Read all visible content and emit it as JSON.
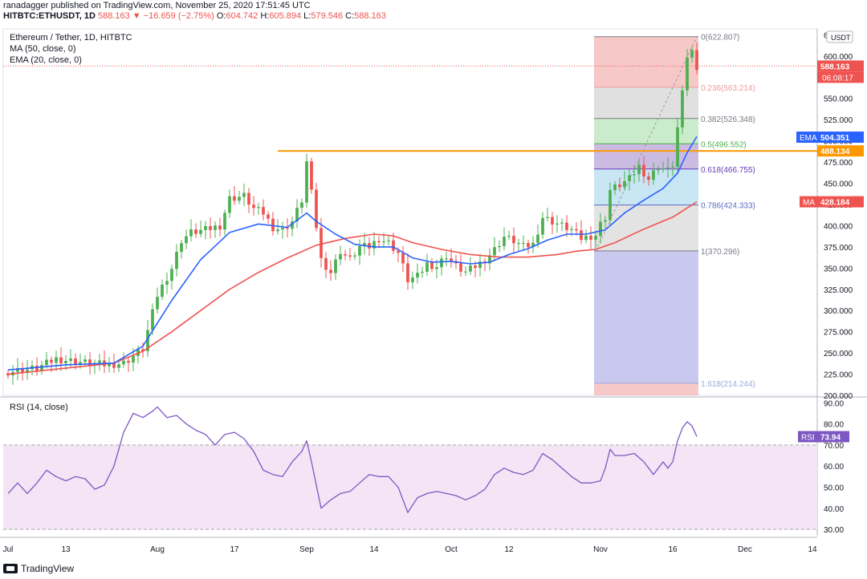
{
  "header": {
    "line1": "ranadagger published on TradingView.com, November 25, 2020 17:51:45 UTC",
    "symbol": "HITBTC:ETHUSDT, 1D",
    "last": "588.163",
    "change": "▼ −16.659 (−2.75%)",
    "o_label": "O:",
    "o": "604.742",
    "h_label": "H:",
    "h": "605.894",
    "l_label": "L:",
    "l": "579.546",
    "c_label": "C:",
    "c": "588.163"
  },
  "legend": {
    "title": "Ethereum / Tether, 1D, HITBTC",
    "ma": "MA (50, close, 0)",
    "ema": "EMA (20, close, 0)"
  },
  "rsi_legend": "RSI (14, close)",
  "footer": {
    "brand": "TradingView"
  },
  "colors": {
    "up": "#4caf50",
    "down": "#ef5350",
    "ema": "#2962ff",
    "ma": "#ef5350",
    "hline": "#ff9800",
    "rsi_line": "#7e57c2",
    "rsi_fill": "#f3e5f5"
  },
  "chart_data": [
    {
      "type": "candlestick",
      "title": "Ethereum / Tether, 1D, HITBTC",
      "currency": "USDT",
      "ylim": [
        200,
        632
      ],
      "y_ticks": [
        "200.000",
        "225.000",
        "250.000",
        "275.000",
        "300.000",
        "325.000",
        "350.000",
        "375.000",
        "400.000",
        "425.000",
        "450.000",
        "475.000",
        "500.000",
        "525.000",
        "550.000",
        "575.000",
        "600.000",
        "625.000"
      ],
      "x_ticks": [
        "Jul",
        "13",
        "Aug",
        "17",
        "Sep",
        "14",
        "Oct",
        "12",
        "Nov",
        "16",
        "Dec",
        "14"
      ],
      "x_tick_day": [
        0,
        12,
        31,
        47,
        62,
        76,
        92,
        104,
        123,
        138,
        153,
        167
      ],
      "day_range": [
        -1,
        168
      ],
      "close_series": [
        [
          0,
          228
        ],
        [
          6,
          232
        ],
        [
          10,
          243
        ],
        [
          14,
          240
        ],
        [
          20,
          236
        ],
        [
          24,
          238
        ],
        [
          28,
          255
        ],
        [
          31,
          318
        ],
        [
          34,
          350
        ],
        [
          36,
          383
        ],
        [
          38,
          392
        ],
        [
          41,
          395
        ],
        [
          44,
          400
        ],
        [
          46,
          432
        ],
        [
          49,
          435
        ],
        [
          51,
          420
        ],
        [
          53,
          415
        ],
        [
          55,
          398
        ],
        [
          57,
          395
        ],
        [
          59,
          405
        ],
        [
          61,
          430
        ],
        [
          62,
          475
        ],
        [
          63,
          438
        ],
        [
          65,
          360
        ],
        [
          67,
          345
        ],
        [
          69,
          370
        ],
        [
          71,
          360
        ],
        [
          73,
          375
        ],
        [
          75,
          375
        ],
        [
          77,
          385
        ],
        [
          79,
          380
        ],
        [
          81,
          368
        ],
        [
          83,
          336
        ],
        [
          85,
          340
        ],
        [
          87,
          355
        ],
        [
          89,
          352
        ],
        [
          91,
          365
        ],
        [
          93,
          352
        ],
        [
          95,
          345
        ],
        [
          97,
          352
        ],
        [
          99,
          360
        ],
        [
          101,
          372
        ],
        [
          103,
          387
        ],
        [
          105,
          382
        ],
        [
          107,
          375
        ],
        [
          109,
          378
        ],
        [
          111,
          410
        ],
        [
          113,
          405
        ],
        [
          115,
          400
        ],
        [
          117,
          395
        ],
        [
          119,
          385
        ],
        [
          121,
          388
        ],
        [
          122,
          389
        ],
        [
          123,
          402
        ],
        [
          124,
          410
        ],
        [
          125,
          442
        ],
        [
          127,
          448
        ],
        [
          129,
          455
        ],
        [
          131,
          470
        ],
        [
          133,
          455
        ],
        [
          135,
          470
        ],
        [
          137,
          465
        ],
        [
          138,
          472
        ],
        [
          139,
          515
        ],
        [
          140,
          555
        ],
        [
          141,
          600
        ],
        [
          142,
          605
        ],
        [
          143,
          588
        ]
      ],
      "ema": {
        "label": "EMA",
        "value": "504.351",
        "points": [
          [
            0,
            230
          ],
          [
            12,
            236
          ],
          [
            22,
            238
          ],
          [
            28,
            258
          ],
          [
            34,
            312
          ],
          [
            40,
            360
          ],
          [
            46,
            392
          ],
          [
            52,
            402
          ],
          [
            58,
            398
          ],
          [
            62,
            415
          ],
          [
            64,
            405
          ],
          [
            68,
            390
          ],
          [
            72,
            378
          ],
          [
            76,
            375
          ],
          [
            80,
            375
          ],
          [
            84,
            362
          ],
          [
            88,
            357
          ],
          [
            92,
            358
          ],
          [
            96,
            355
          ],
          [
            100,
            357
          ],
          [
            104,
            366
          ],
          [
            108,
            373
          ],
          [
            112,
            383
          ],
          [
            116,
            390
          ],
          [
            120,
            390
          ],
          [
            124,
            395
          ],
          [
            128,
            415
          ],
          [
            132,
            430
          ],
          [
            136,
            444
          ],
          [
            139,
            462
          ],
          [
            141,
            486
          ],
          [
            143,
            505
          ]
        ]
      },
      "ma": {
        "label": "MA",
        "value": "428.184",
        "points": [
          [
            0,
            225
          ],
          [
            12,
            232
          ],
          [
            22,
            238
          ],
          [
            28,
            252
          ],
          [
            34,
            275
          ],
          [
            40,
            300
          ],
          [
            46,
            325
          ],
          [
            52,
            345
          ],
          [
            58,
            362
          ],
          [
            64,
            377
          ],
          [
            70,
            385
          ],
          [
            76,
            390
          ],
          [
            80,
            388
          ],
          [
            84,
            380
          ],
          [
            90,
            372
          ],
          [
            96,
            366
          ],
          [
            102,
            363
          ],
          [
            108,
            363
          ],
          [
            114,
            366
          ],
          [
            118,
            370
          ],
          [
            122,
            372
          ],
          [
            126,
            380
          ],
          [
            132,
            396
          ],
          [
            138,
            410
          ],
          [
            143,
            428
          ]
        ]
      },
      "horizontal_line": {
        "value": 488.134,
        "label": "488.134",
        "from_day": 56
      },
      "last_price": {
        "value": 588.163,
        "label": "588.163",
        "countdown": "06:08:17"
      },
      "fibonacci": {
        "from_day": 122,
        "to_day": 143,
        "levels": [
          {
            "ratio": 0,
            "value": 622.807,
            "label": "0(622.807)",
            "color": "#787b86"
          },
          {
            "ratio": 0.236,
            "value": 563.214,
            "label": "0.236(563.214)",
            "color": "#ef9a9a"
          },
          {
            "ratio": 0.382,
            "value": 526.348,
            "label": "0.382(526.348)",
            "color": "#787b86"
          },
          {
            "ratio": 0.5,
            "value": 496.552,
            "label": "0.5(496.552)",
            "color": "#4caf50"
          },
          {
            "ratio": 0.618,
            "value": 466.755,
            "label": "0.618(466.755)",
            "color": "#673ab7"
          },
          {
            "ratio": 0.786,
            "value": 424.333,
            "label": "0.786(424.333)",
            "color": "#5c6bc0"
          },
          {
            "ratio": 1,
            "value": 370.296,
            "label": "1(370.296)",
            "color": "#787b86"
          },
          {
            "ratio": 1.618,
            "value": 214.244,
            "label": "1.618(214.244)",
            "color": "#9fa8da"
          }
        ],
        "bands": [
          {
            "from": 622.807,
            "to": 563.214,
            "color": "#f4b6b6"
          },
          {
            "from": 563.214,
            "to": 526.348,
            "color": "#d6d6d6"
          },
          {
            "from": 526.348,
            "to": 496.552,
            "color": "#b9e6bb"
          },
          {
            "from": 496.552,
            "to": 466.755,
            "color": "#b9a4d8"
          },
          {
            "from": 466.755,
            "to": 424.333,
            "color": "#b7def0"
          },
          {
            "from": 424.333,
            "to": 370.296,
            "color": "#d9d9d9"
          },
          {
            "from": 370.296,
            "to": 214.244,
            "color": "#b7b7ea"
          },
          {
            "from": 214.244,
            "to": 200,
            "color": "#f4b6b6"
          }
        ]
      }
    },
    {
      "type": "line",
      "title": "RSI (14, close)",
      "ylim": [
        27,
        92
      ],
      "y_ticks": [
        "30.00",
        "40.00",
        "50.00",
        "60.00",
        "70.00",
        "80.00",
        "90.00"
      ],
      "band": [
        30,
        70
      ],
      "current": {
        "label": "RSI",
        "value": "73.94"
      },
      "points": [
        [
          0,
          47
        ],
        [
          2,
          52
        ],
        [
          4,
          47
        ],
        [
          6,
          52
        ],
        [
          8,
          58
        ],
        [
          10,
          55
        ],
        [
          12,
          53
        ],
        [
          14,
          55
        ],
        [
          16,
          54
        ],
        [
          18,
          49
        ],
        [
          20,
          51
        ],
        [
          22,
          60
        ],
        [
          24,
          76
        ],
        [
          26,
          85
        ],
        [
          28,
          83
        ],
        [
          30,
          86
        ],
        [
          31,
          88
        ],
        [
          33,
          83
        ],
        [
          35,
          84
        ],
        [
          37,
          80
        ],
        [
          39,
          77
        ],
        [
          41,
          75
        ],
        [
          43,
          70
        ],
        [
          45,
          75
        ],
        [
          47,
          76
        ],
        [
          49,
          73
        ],
        [
          51,
          67
        ],
        [
          53,
          58
        ],
        [
          55,
          56
        ],
        [
          57,
          55
        ],
        [
          59,
          62
        ],
        [
          61,
          67
        ],
        [
          62,
          72
        ],
        [
          63,
          62
        ],
        [
          65,
          40
        ],
        [
          67,
          44
        ],
        [
          69,
          47
        ],
        [
          71,
          48
        ],
        [
          73,
          52
        ],
        [
          75,
          56
        ],
        [
          77,
          55
        ],
        [
          79,
          55
        ],
        [
          81,
          50
        ],
        [
          83,
          38
        ],
        [
          85,
          45
        ],
        [
          87,
          47
        ],
        [
          89,
          48
        ],
        [
          91,
          47
        ],
        [
          93,
          46
        ],
        [
          95,
          44
        ],
        [
          97,
          46
        ],
        [
          99,
          49
        ],
        [
          101,
          56
        ],
        [
          103,
          59
        ],
        [
          105,
          57
        ],
        [
          107,
          56
        ],
        [
          109,
          58
        ],
        [
          111,
          66
        ],
        [
          113,
          63
        ],
        [
          115,
          59
        ],
        [
          117,
          55
        ],
        [
          119,
          52
        ],
        [
          121,
          52
        ],
        [
          123,
          53
        ],
        [
          124,
          59
        ],
        [
          125,
          68
        ],
        [
          126,
          65
        ],
        [
          128,
          65
        ],
        [
          130,
          66
        ],
        [
          132,
          62
        ],
        [
          134,
          56
        ],
        [
          136,
          62
        ],
        [
          137,
          59
        ],
        [
          138,
          62
        ],
        [
          139,
          72
        ],
        [
          140,
          78
        ],
        [
          141,
          81
        ],
        [
          142,
          79
        ],
        [
          143,
          74
        ]
      ]
    }
  ]
}
